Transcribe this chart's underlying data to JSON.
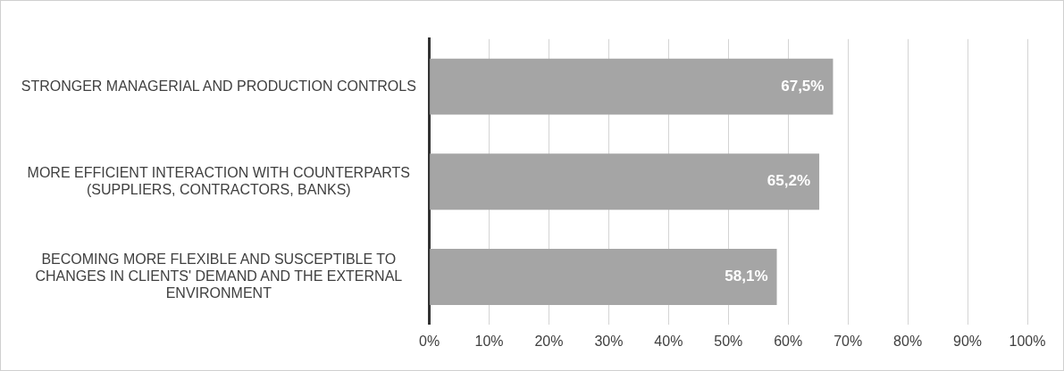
{
  "chart_data": {
    "type": "bar",
    "orientation": "horizontal",
    "categories": [
      "STRONGER MANAGERIAL AND PRODUCTION CONTROLS",
      "MORE EFFICIENT INTERACTION WITH COUNTERPARTS (SUPPLIERS, CONTRACTORS, BANKS)",
      "BECOMING MORE FLEXIBLE AND SUSCEPTIBLE TO CHANGES IN CLIENTS' DEMAND AND THE EXTERNAL ENVIRONMENT"
    ],
    "values": [
      67.5,
      65.2,
      58.1
    ],
    "value_labels": [
      "67,5%",
      "65,2%",
      "58,1%"
    ],
    "color": "#a5a5a5",
    "xlim": [
      0,
      100
    ],
    "xticks": [
      {
        "value": 0,
        "label": "0%"
      },
      {
        "value": 10,
        "label": "10%"
      },
      {
        "value": 20,
        "label": "20%"
      },
      {
        "value": 30,
        "label": "30%"
      },
      {
        "value": 40,
        "label": "40%"
      },
      {
        "value": 50,
        "label": "50%"
      },
      {
        "value": 60,
        "label": "60%"
      },
      {
        "value": 70,
        "label": "70%"
      },
      {
        "value": 80,
        "label": "80%"
      },
      {
        "value": 90,
        "label": "90%"
      },
      {
        "value": 100,
        "label": "100%"
      }
    ],
    "grid": "x"
  }
}
